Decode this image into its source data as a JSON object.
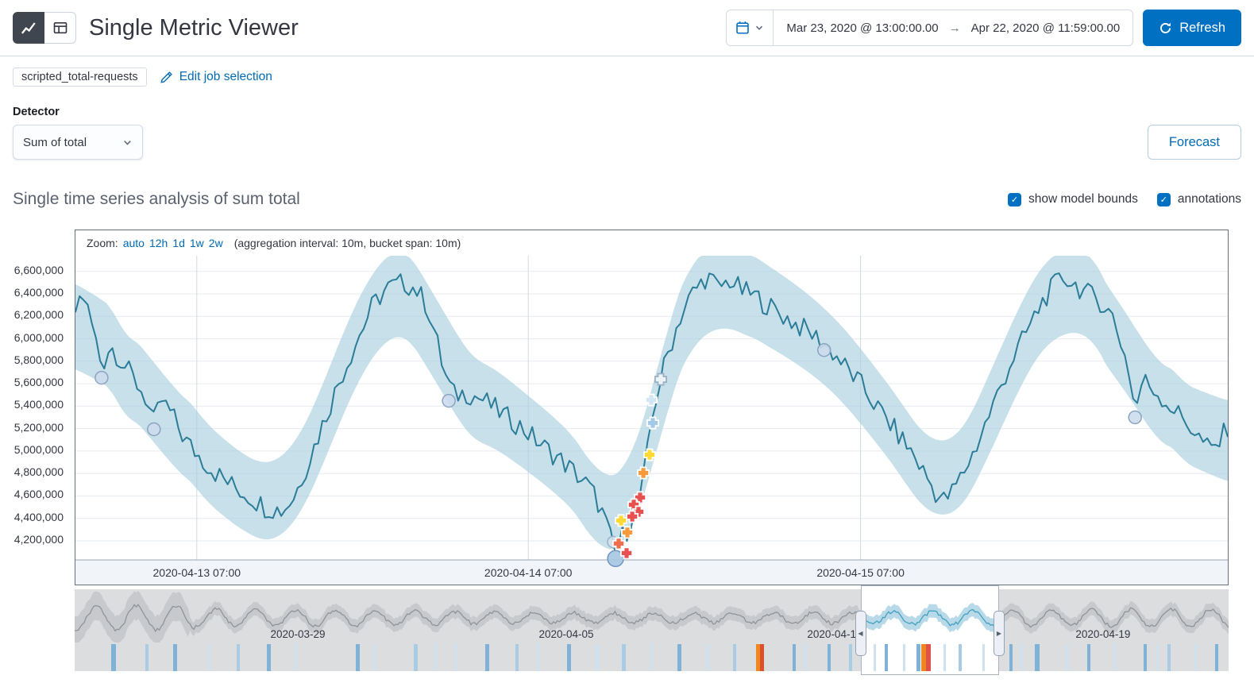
{
  "icons": {
    "arrow_right": "→",
    "check": "✓",
    "handle_left": "◀",
    "handle_right": "▶"
  },
  "header": {
    "title": "Single Metric Viewer",
    "date_start": "Mar 23, 2020 @ 13:00:00.00",
    "date_end": "Apr 22, 2020 @ 11:59:00.00",
    "refresh_label": "Refresh"
  },
  "job_bar": {
    "badge": "scripted_total-requests",
    "edit_link": "Edit job selection"
  },
  "detector": {
    "label": "Detector",
    "value": "Sum of total"
  },
  "forecast_label": "Forecast",
  "series": {
    "title": "Single time series analysis of sum total",
    "checkbox_model_bounds": "show model bounds",
    "checkbox_annotations": "annotations"
  },
  "zoom_bar": {
    "label": "Zoom:",
    "options": [
      "auto",
      "12h",
      "1d",
      "1w",
      "2w"
    ],
    "info": "(aggregation interval: 10m, bucket span: 10m)"
  },
  "chart_data": {
    "type": "line",
    "title": "Single time series analysis of sum total",
    "ylim": [
      4030000,
      6740000
    ],
    "y_ticks": [
      4200000,
      4400000,
      4600000,
      4800000,
      5000000,
      5200000,
      5400000,
      5600000,
      5800000,
      6000000,
      6200000,
      6400000,
      6600000
    ],
    "x_ticks": [
      {
        "x": 0.1053,
        "label": "2020-04-13 07:00"
      },
      {
        "x": 0.393,
        "label": "2020-04-14 07:00"
      },
      {
        "x": 0.6813,
        "label": "2020-04-15 07:00"
      }
    ],
    "line_color": "#2b7c98",
    "bounds_color": "#a9cfdf",
    "noise_amplitude": 100000,
    "series_keypoints": [
      [
        0.0,
        6250000
      ],
      [
        0.006,
        6420000
      ],
      [
        0.015,
        6100000
      ],
      [
        0.023,
        5750000
      ],
      [
        0.03,
        5950000
      ],
      [
        0.04,
        5800000
      ],
      [
        0.05,
        5650000
      ],
      [
        0.06,
        5500000
      ],
      [
        0.068,
        5250000
      ],
      [
        0.075,
        5450000
      ],
      [
        0.085,
        5300000
      ],
      [
        0.095,
        5100000
      ],
      [
        0.105,
        4980000
      ],
      [
        0.12,
        4820000
      ],
      [
        0.135,
        4700000
      ],
      [
        0.15,
        4600000
      ],
      [
        0.165,
        4500000
      ],
      [
        0.18,
        4470000
      ],
      [
        0.19,
        4600000
      ],
      [
        0.2,
        4850000
      ],
      [
        0.215,
        5250000
      ],
      [
        0.23,
        5650000
      ],
      [
        0.245,
        6000000
      ],
      [
        0.258,
        6300000
      ],
      [
        0.27,
        6450000
      ],
      [
        0.285,
        6500000
      ],
      [
        0.295,
        6450000
      ],
      [
        0.305,
        6300000
      ],
      [
        0.312,
        6050000
      ],
      [
        0.32,
        5700000
      ],
      [
        0.328,
        5500000
      ],
      [
        0.34,
        5520000
      ],
      [
        0.355,
        5450000
      ],
      [
        0.37,
        5330000
      ],
      [
        0.385,
        5230000
      ],
      [
        0.394,
        5150000
      ],
      [
        0.405,
        5050000
      ],
      [
        0.42,
        4930000
      ],
      [
        0.432,
        4820000
      ],
      [
        0.444,
        4700000
      ],
      [
        0.452,
        4580000
      ],
      [
        0.459,
        4400000
      ],
      [
        0.464,
        4230000
      ],
      [
        0.4687,
        4075000
      ],
      [
        0.474,
        4250000
      ],
      [
        0.479,
        4300000
      ],
      [
        0.484,
        4450000
      ],
      [
        0.489,
        4550000
      ],
      [
        0.493,
        4750000
      ],
      [
        0.498,
        5100000
      ],
      [
        0.501,
        5350000
      ],
      [
        0.508,
        5650000
      ],
      [
        0.515,
        5900000
      ],
      [
        0.525,
        6200000
      ],
      [
        0.535,
        6400000
      ],
      [
        0.548,
        6560000
      ],
      [
        0.558,
        6450000
      ],
      [
        0.568,
        6520000
      ],
      [
        0.578,
        6430000
      ],
      [
        0.59,
        6380000
      ],
      [
        0.6,
        6300000
      ],
      [
        0.615,
        6200000
      ],
      [
        0.63,
        6100000
      ],
      [
        0.645,
        6000000
      ],
      [
        0.65,
        5950000
      ],
      [
        0.66,
        5850000
      ],
      [
        0.672,
        5700000
      ],
      [
        0.681,
        5600000
      ],
      [
        0.695,
        5400000
      ],
      [
        0.71,
        5200000
      ],
      [
        0.725,
        5000000
      ],
      [
        0.737,
        4800000
      ],
      [
        0.747,
        4620000
      ],
      [
        0.753,
        4560000
      ],
      [
        0.76,
        4620000
      ],
      [
        0.77,
        4800000
      ],
      [
        0.78,
        5000000
      ],
      [
        0.79,
        5250000
      ],
      [
        0.8,
        5500000
      ],
      [
        0.81,
        5750000
      ],
      [
        0.82,
        5950000
      ],
      [
        0.83,
        6150000
      ],
      [
        0.84,
        6350000
      ],
      [
        0.85,
        6480000
      ],
      [
        0.858,
        6550000
      ],
      [
        0.868,
        6480000
      ],
      [
        0.878,
        6400000
      ],
      [
        0.888,
        6350000
      ],
      [
        0.9,
        6200000
      ],
      [
        0.908,
        5950000
      ],
      [
        0.915,
        5680000
      ],
      [
        0.9195,
        5340000
      ],
      [
        0.926,
        5640000
      ],
      [
        0.935,
        5560000
      ],
      [
        0.945,
        5450000
      ],
      [
        0.955,
        5350000
      ],
      [
        0.965,
        5250000
      ],
      [
        0.975,
        5120000
      ],
      [
        0.985,
        5000000
      ],
      [
        0.993,
        5080000
      ],
      [
        1.0,
        5220000
      ]
    ],
    "bounds_halfwidth": [
      [
        0,
        380000
      ],
      [
        0.05,
        360000
      ],
      [
        0.1,
        350000
      ],
      [
        0.15,
        340000
      ],
      [
        0.183,
        350000
      ],
      [
        0.22,
        360000
      ],
      [
        0.28,
        380000
      ],
      [
        0.33,
        370000
      ],
      [
        0.39,
        340000
      ],
      [
        0.43,
        330000
      ],
      [
        0.4687,
        330000
      ],
      [
        0.51,
        360000
      ],
      [
        0.548,
        380000
      ],
      [
        0.6,
        360000
      ],
      [
        0.65,
        340000
      ],
      [
        0.7,
        330000
      ],
      [
        0.753,
        330000
      ],
      [
        0.8,
        360000
      ],
      [
        0.858,
        380000
      ],
      [
        0.9,
        360000
      ],
      [
        0.92,
        350000
      ],
      [
        0.96,
        350000
      ],
      [
        1,
        360000
      ]
    ],
    "markers": {
      "circles": [
        [
          0.0227,
          5653000,
          8,
          "#ccdcec",
          "#8aa4c1"
        ],
        [
          0.0681,
          5194000,
          8,
          "#ccdcec",
          "#8aa4c1"
        ],
        [
          0.324,
          5448000,
          8,
          "#ccdcec",
          "#8aa4c1"
        ],
        [
          0.6497,
          5900000,
          8,
          "#ccdcec",
          "#8aa4c1"
        ],
        [
          0.9195,
          5300000,
          8,
          "#ccdcec",
          "#8aa4c1"
        ],
        [
          0.4666,
          4190000,
          7,
          "#d5e2ef",
          "#9bb1c9"
        ],
        [
          0.4687,
          4042000,
          10,
          "#a6c6e3",
          "#6f95bf"
        ]
      ],
      "crosses": [
        [
          0.5079,
          5639000,
          "#eef3f7",
          "#9ab0c3"
        ],
        [
          0.4997,
          5455000,
          "#d2e6f5",
          "#ffffff"
        ],
        [
          0.501,
          5250000,
          "#a5c9e8",
          "#ffffff"
        ],
        [
          0.4983,
          4967000,
          "#ffd935",
          "#ffffff"
        ],
        [
          0.4928,
          4805000,
          "#f79a3e",
          "#ffffff"
        ],
        [
          0.49,
          4586000,
          "#e7514f",
          "#ffffff"
        ],
        [
          0.4845,
          4522000,
          "#e7514f",
          "#ffffff"
        ],
        [
          0.4886,
          4459000,
          "#e7514f",
          "#ffffff"
        ],
        [
          0.4832,
          4416000,
          "#e7514f",
          "#ffffff"
        ],
        [
          0.4735,
          4381000,
          "#ffd935",
          "#ffffff"
        ],
        [
          0.479,
          4275000,
          "#f79a3e",
          "#ffffff"
        ],
        [
          0.4714,
          4176000,
          "#ef6f4e",
          "#ffffff"
        ],
        [
          0.4783,
          4091000,
          "#e7514f",
          "#ffffff"
        ]
      ]
    }
  },
  "context_chart": {
    "cycles": 29,
    "bg": "#dcdddf",
    "band_gray": "#c7c9cc",
    "line_gray": "#8f9499",
    "band_blue": "#b7d9e8",
    "line_blue": "#44a0c0",
    "tick_labels": [
      {
        "x": 0.1934,
        "label": "2020-03-29"
      },
      {
        "x": 0.426,
        "label": "2020-04-05"
      },
      {
        "x": 0.6586,
        "label": "2020-04-12"
      },
      {
        "x": 0.8912,
        "label": "2020-04-19"
      }
    ],
    "brush": {
      "start": 0.681,
      "end": 0.801
    }
  },
  "swimlane": {
    "stripes": [
      [
        0.0317,
        6,
        "#7fb2d6"
      ],
      [
        0.0613,
        4,
        "#a9cbe4"
      ],
      [
        0.0853,
        5,
        "#7fb2d6"
      ],
      [
        0.1156,
        3,
        "#cfe1ef"
      ],
      [
        0.1404,
        4,
        "#a9cbe4"
      ],
      [
        0.1665,
        5,
        "#7fb2d6"
      ],
      [
        0.1906,
        3,
        "#cfe1ef"
      ],
      [
        0.2436,
        5,
        "#7fb2d6"
      ],
      [
        0.2588,
        3,
        "#cfe1ef"
      ],
      [
        0.2939,
        5,
        "#a9cbe4"
      ],
      [
        0.3118,
        3,
        "#cfe1ef"
      ],
      [
        0.329,
        3,
        "#cfe1ef"
      ],
      [
        0.3558,
        5,
        "#7fb2d6"
      ],
      [
        0.382,
        4,
        "#a9cbe4"
      ],
      [
        0.4005,
        3,
        "#cfe1ef"
      ],
      [
        0.4267,
        5,
        "#7fb2d6"
      ],
      [
        0.4514,
        4,
        "#cfe1ef"
      ],
      [
        0.4742,
        5,
        "#a9cbe4"
      ],
      [
        0.4989,
        3,
        "#cfe1ef"
      ],
      [
        0.5223,
        5,
        "#7fb2d6"
      ],
      [
        0.5471,
        4,
        "#cfe1ef"
      ],
      [
        0.5705,
        4,
        "#a9cbe4"
      ],
      [
        0.5905,
        5,
        "#f0861f"
      ],
      [
        0.594,
        5,
        "#d9512c"
      ],
      [
        0.6221,
        4,
        "#7fb2d6"
      ],
      [
        0.6324,
        3,
        "#cfe1ef"
      ],
      [
        0.6524,
        4,
        "#7fb2d6"
      ],
      [
        0.671,
        4,
        "#a9cbe4"
      ],
      [
        0.6924,
        3,
        "#cfe1ef"
      ],
      [
        0.702,
        4,
        "#7fb2d6"
      ],
      [
        0.7178,
        3,
        "#cfe1ef"
      ],
      [
        0.7295,
        5,
        "#7fb2d6"
      ],
      [
        0.7336,
        6,
        "#f0861f"
      ],
      [
        0.7378,
        6,
        "#e2504a"
      ],
      [
        0.7529,
        3,
        "#cfe1ef"
      ],
      [
        0.766,
        4,
        "#a9cbe4"
      ],
      [
        0.7866,
        3,
        "#cfe1ef"
      ],
      [
        0.81,
        4,
        "#7fb2d6"
      ],
      [
        0.8197,
        3,
        "#cfe1ef"
      ],
      [
        0.8321,
        6,
        "#7fb2d6"
      ],
      [
        0.8589,
        3,
        "#cfe1ef"
      ],
      [
        0.8775,
        4,
        "#7fb2d6"
      ],
      [
        0.9002,
        3,
        "#cfe1ef"
      ],
      [
        0.9264,
        4,
        "#7fb2d6"
      ],
      [
        0.9374,
        3,
        "#cfe1ef"
      ],
      [
        0.947,
        4,
        "#a9cbe4"
      ],
      [
        0.9704,
        3,
        "#cfe1ef"
      ],
      [
        0.9883,
        4,
        "#7fb2d6"
      ]
    ]
  }
}
